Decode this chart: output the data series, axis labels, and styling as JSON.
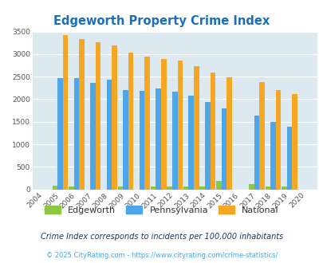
{
  "title": "Edgeworth Property Crime Index",
  "years": [
    2004,
    2005,
    2006,
    2007,
    2008,
    2009,
    2010,
    2011,
    2012,
    2013,
    2014,
    2015,
    2016,
    2017,
    2018,
    2019,
    2020
  ],
  "edgeworth": [
    0,
    80,
    60,
    0,
    0,
    60,
    0,
    60,
    60,
    60,
    60,
    180,
    0,
    120,
    60,
    60,
    0
  ],
  "pennsylvania": [
    0,
    2460,
    2470,
    2370,
    2440,
    2200,
    2180,
    2240,
    2160,
    2070,
    1940,
    1790,
    0,
    1630,
    1490,
    1390,
    0
  ],
  "national": [
    0,
    3420,
    3340,
    3260,
    3200,
    3040,
    2950,
    2900,
    2860,
    2730,
    2600,
    2490,
    0,
    2380,
    2200,
    2110,
    0
  ],
  "bar_width": 0.32,
  "ylim": [
    0,
    3500
  ],
  "yticks": [
    0,
    500,
    1000,
    1500,
    2000,
    2500,
    3000,
    3500
  ],
  "edgeworth_color": "#8dc63f",
  "pennsylvania_color": "#4da6e8",
  "national_color": "#f5a623",
  "bg_color": "#dce9f0",
  "grid_color": "#ffffff",
  "title_color": "#1a6ebd",
  "subtitle": "Crime Index corresponds to incidents per 100,000 inhabitants",
  "footer": "© 2025 CityRating.com - https://www.cityrating.com/crime-statistics/",
  "subtitle_color": "#1a3a5c",
  "footer_color": "#4da6e8"
}
